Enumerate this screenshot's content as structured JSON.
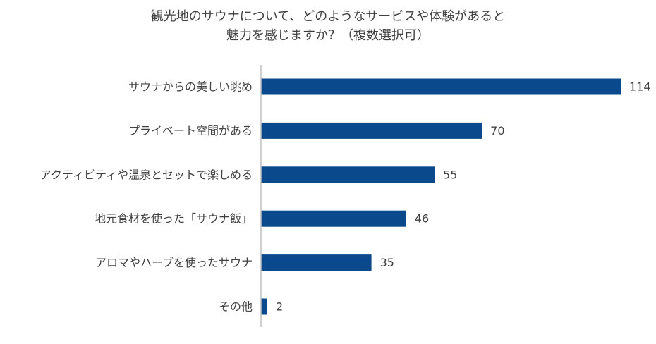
{
  "chart_data": {
    "type": "bar",
    "orientation": "horizontal",
    "title": "観光地のサウナについて、どのようなサービスや体験があると魅力を感じますか？（複数選択可）",
    "title_lines": [
      "観光地のサウナについて、どのようなサービスや体験があると",
      "魅力を感じますか？（複数選択可）"
    ],
    "categories": [
      "サウナからの美しい眺め",
      "プライベート空間がある",
      "アクティビティや温泉とセットで楽しめる",
      "地元食材を使った「サウナ飯」",
      "アロマやハーブを使ったサウナ",
      "その他"
    ],
    "values": [
      114,
      70,
      55,
      46,
      35,
      2
    ],
    "xlim": [
      0,
      114
    ],
    "grid": false,
    "legend": "none",
    "bar_color": "#0a4a8c",
    "axis_color": "#bfbfbf"
  }
}
